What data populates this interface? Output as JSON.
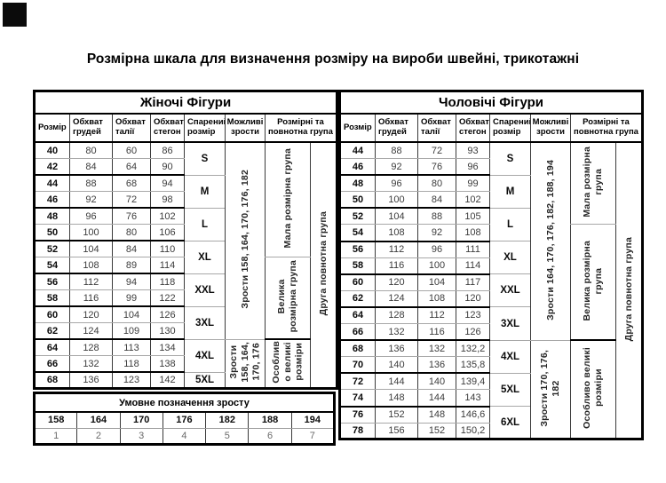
{
  "title": "Розмірна шкала для визначення розміру на вироби швейні, трикотажні",
  "col_headers": [
    "Розмір",
    "Обхват грудей",
    "Обхват талії",
    "Обхват стегон",
    "Спарений розмір",
    "Можливі зрости",
    "Розмірні та повнотна група"
  ],
  "women": {
    "table_title": "Жіночі Фігури",
    "rows": [
      [
        "40",
        "80",
        "60",
        "86"
      ],
      [
        "42",
        "84",
        "64",
        "90"
      ],
      [
        "44",
        "88",
        "68",
        "94"
      ],
      [
        "46",
        "92",
        "72",
        "98"
      ],
      [
        "48",
        "96",
        "76",
        "102"
      ],
      [
        "50",
        "100",
        "80",
        "106"
      ],
      [
        "52",
        "104",
        "84",
        "110"
      ],
      [
        "54",
        "108",
        "89",
        "114"
      ],
      [
        "56",
        "112",
        "94",
        "118"
      ],
      [
        "58",
        "116",
        "99",
        "122"
      ],
      [
        "60",
        "120",
        "104",
        "126"
      ],
      [
        "62",
        "124",
        "109",
        "130"
      ],
      [
        "64",
        "128",
        "113",
        "134"
      ],
      [
        "66",
        "132",
        "118",
        "138"
      ],
      [
        "68",
        "136",
        "123",
        "142"
      ]
    ],
    "paired": [
      {
        "text": "S",
        "span": 2
      },
      {
        "text": "M",
        "span": 2
      },
      {
        "text": "L",
        "span": 2
      },
      {
        "text": "XL",
        "span": 2
      },
      {
        "text": "XXL",
        "span": 2
      },
      {
        "text": "3XL",
        "span": 2
      },
      {
        "text": "4XL",
        "span": 2
      },
      {
        "text": "5XL",
        "span": 1
      }
    ],
    "heights_cells": [
      {
        "text": "Зрости 158, 164, 170, 176, 182",
        "span": 12
      },
      {
        "text": "Зрости\n158, 164,\n170, 176",
        "span": 3
      }
    ],
    "groups": [
      {
        "text": "Мала розмірна група",
        "span": 7
      },
      {
        "text": "Велика\nрозмірна група",
        "span": 5
      },
      {
        "text": "Особлив\nо великі\nрозміри",
        "span": 3
      }
    ],
    "fullness": [
      {
        "text": "Друга повнотна група",
        "span": 15
      }
    ]
  },
  "men": {
    "table_title": "Чоловічі Фігури",
    "rows": [
      [
        "44",
        "88",
        "72",
        "93"
      ],
      [
        "46",
        "92",
        "76",
        "96"
      ],
      [
        "48",
        "96",
        "80",
        "99"
      ],
      [
        "50",
        "100",
        "84",
        "102"
      ],
      [
        "52",
        "104",
        "88",
        "105"
      ],
      [
        "54",
        "108",
        "92",
        "108"
      ],
      [
        "56",
        "112",
        "96",
        "111"
      ],
      [
        "58",
        "116",
        "100",
        "114"
      ],
      [
        "60",
        "120",
        "104",
        "117"
      ],
      [
        "62",
        "124",
        "108",
        "120"
      ],
      [
        "64",
        "128",
        "112",
        "123"
      ],
      [
        "66",
        "132",
        "116",
        "126"
      ],
      [
        "68",
        "136",
        "132",
        "132,2"
      ],
      [
        "70",
        "140",
        "136",
        "135,8"
      ],
      [
        "72",
        "144",
        "140",
        "139,4"
      ],
      [
        "74",
        "148",
        "144",
        "143"
      ],
      [
        "76",
        "152",
        "148",
        "146,6"
      ],
      [
        "78",
        "156",
        "152",
        "150,2"
      ]
    ],
    "paired": [
      {
        "text": "S",
        "span": 2
      },
      {
        "text": "M",
        "span": 2
      },
      {
        "text": "L",
        "span": 2
      },
      {
        "text": "XL",
        "span": 2
      },
      {
        "text": "XXL",
        "span": 2
      },
      {
        "text": "3XL",
        "span": 2
      },
      {
        "text": "4XL",
        "span": 2
      },
      {
        "text": "5XL",
        "span": 2
      },
      {
        "text": "6XL",
        "span": 2
      }
    ],
    "heights_cells": [
      {
        "text": "Зрости 164, 170, 176, 182, 188, 194",
        "span": 12
      },
      {
        "text": "Зрости 170, 176,\n182",
        "span": 6
      }
    ],
    "groups": [
      {
        "text": "Мала розмірна\nгрупа",
        "span": 5
      },
      {
        "text": "Велика розмірна\nгрупа",
        "span": 7
      },
      {
        "text": "Особливо великі\nрозміри",
        "span": 6
      }
    ],
    "fullness": [
      {
        "text": "Друга повнотна група",
        "span": 18
      }
    ]
  },
  "legend": {
    "title": "Умовне позначення зросту",
    "heights": [
      "158",
      "164",
      "170",
      "176",
      "182",
      "188",
      "194"
    ],
    "codes": [
      "1",
      "2",
      "3",
      "4",
      "5",
      "6",
      "7"
    ]
  }
}
